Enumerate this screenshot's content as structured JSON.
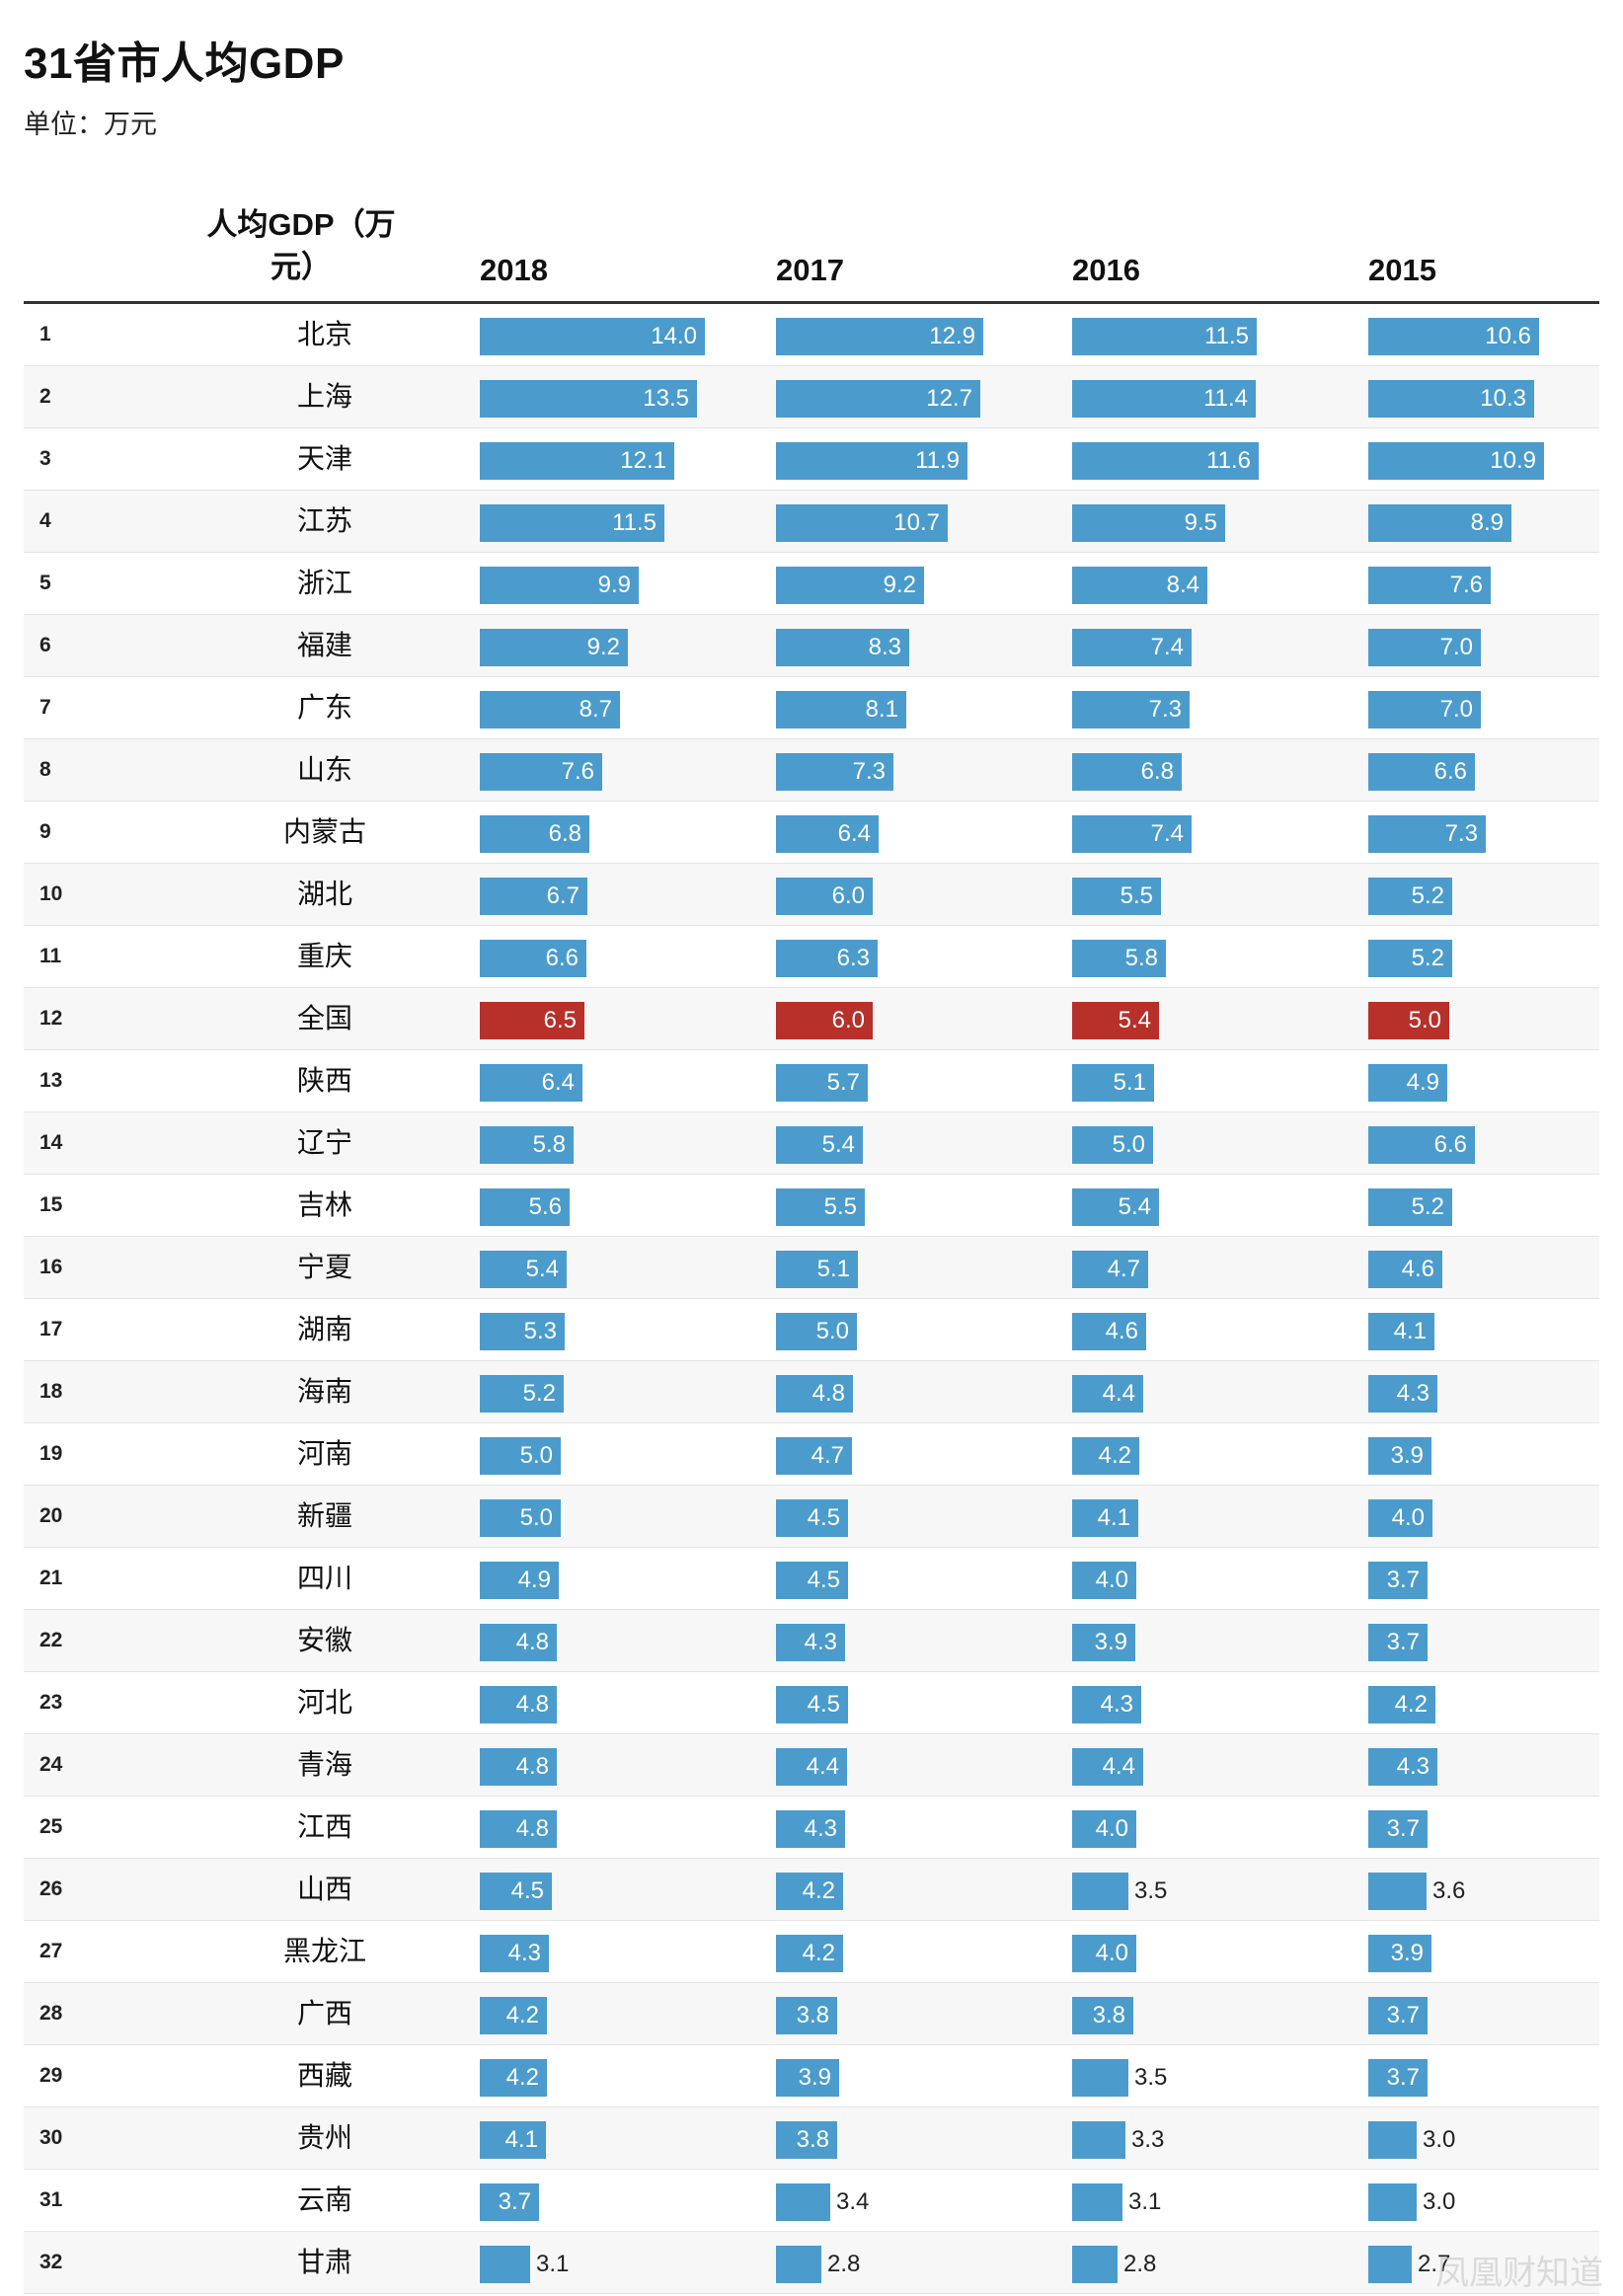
{
  "chart_data": {
    "type": "table",
    "title": "31省市人均GDP",
    "subtitle": "单位：万元",
    "name_header": "人均GDP（万元）",
    "years": [
      "2018",
      "2017",
      "2016",
      "2015"
    ],
    "rows": [
      {
        "rank": "1",
        "name": "北京",
        "values": [
          14.0,
          12.9,
          11.5,
          10.6
        ]
      },
      {
        "rank": "2",
        "name": "上海",
        "values": [
          13.5,
          12.7,
          11.4,
          10.3
        ]
      },
      {
        "rank": "3",
        "name": "天津",
        "values": [
          12.1,
          11.9,
          11.6,
          10.9
        ]
      },
      {
        "rank": "4",
        "name": "江苏",
        "values": [
          11.5,
          10.7,
          9.5,
          8.9
        ]
      },
      {
        "rank": "5",
        "name": "浙江",
        "values": [
          9.9,
          9.2,
          8.4,
          7.6
        ]
      },
      {
        "rank": "6",
        "name": "福建",
        "values": [
          9.2,
          8.3,
          7.4,
          7.0
        ]
      },
      {
        "rank": "7",
        "name": "广东",
        "values": [
          8.7,
          8.1,
          7.3,
          7.0
        ]
      },
      {
        "rank": "8",
        "name": "山东",
        "values": [
          7.6,
          7.3,
          6.8,
          6.6
        ]
      },
      {
        "rank": "9",
        "name": "内蒙古",
        "values": [
          6.8,
          6.4,
          7.4,
          7.3
        ]
      },
      {
        "rank": "10",
        "name": "湖北",
        "values": [
          6.7,
          6.0,
          5.5,
          5.2
        ]
      },
      {
        "rank": "11",
        "name": "重庆",
        "values": [
          6.6,
          6.3,
          5.8,
          5.2
        ]
      },
      {
        "rank": "12",
        "name": "全国",
        "values": [
          6.5,
          6.0,
          5.4,
          5.0
        ],
        "highlight": true
      },
      {
        "rank": "13",
        "name": "陕西",
        "values": [
          6.4,
          5.7,
          5.1,
          4.9
        ]
      },
      {
        "rank": "14",
        "name": "辽宁",
        "values": [
          5.8,
          5.4,
          5.0,
          6.6
        ]
      },
      {
        "rank": "15",
        "name": "吉林",
        "values": [
          5.6,
          5.5,
          5.4,
          5.2
        ]
      },
      {
        "rank": "16",
        "name": "宁夏",
        "values": [
          5.4,
          5.1,
          4.7,
          4.6
        ]
      },
      {
        "rank": "17",
        "name": "湖南",
        "values": [
          5.3,
          5.0,
          4.6,
          4.1
        ]
      },
      {
        "rank": "18",
        "name": "海南",
        "values": [
          5.2,
          4.8,
          4.4,
          4.3
        ]
      },
      {
        "rank": "19",
        "name": "河南",
        "values": [
          5.0,
          4.7,
          4.2,
          3.9
        ]
      },
      {
        "rank": "20",
        "name": "新疆",
        "values": [
          5.0,
          4.5,
          4.1,
          4.0
        ]
      },
      {
        "rank": "21",
        "name": "四川",
        "values": [
          4.9,
          4.5,
          4.0,
          3.7
        ]
      },
      {
        "rank": "22",
        "name": "安徽",
        "values": [
          4.8,
          4.3,
          3.9,
          3.7
        ]
      },
      {
        "rank": "23",
        "name": "河北",
        "values": [
          4.8,
          4.5,
          4.3,
          4.2
        ]
      },
      {
        "rank": "24",
        "name": "青海",
        "values": [
          4.8,
          4.4,
          4.4,
          4.3
        ]
      },
      {
        "rank": "25",
        "name": "江西",
        "values": [
          4.8,
          4.3,
          4.0,
          3.7
        ]
      },
      {
        "rank": "26",
        "name": "山西",
        "values": [
          4.5,
          4.2,
          3.5,
          3.6
        ]
      },
      {
        "rank": "27",
        "name": "黑龙江",
        "values": [
          4.3,
          4.2,
          4.0,
          3.9
        ]
      },
      {
        "rank": "28",
        "name": "广西",
        "values": [
          4.2,
          3.8,
          3.8,
          3.7
        ]
      },
      {
        "rank": "29",
        "name": "西藏",
        "values": [
          4.2,
          3.9,
          3.5,
          3.7
        ]
      },
      {
        "rank": "30",
        "name": "贵州",
        "values": [
          4.1,
          3.8,
          3.3,
          3.0
        ]
      },
      {
        "rank": "31",
        "name": "云南",
        "values": [
          3.7,
          3.4,
          3.1,
          3.0
        ]
      },
      {
        "rank": "32",
        "name": "甘肃",
        "values": [
          3.1,
          2.8,
          2.8,
          2.7
        ]
      }
    ],
    "colors": {
      "bar": "#4b9ccc",
      "highlight": "#b7302a"
    }
  },
  "watermark": "凤凰财知道"
}
